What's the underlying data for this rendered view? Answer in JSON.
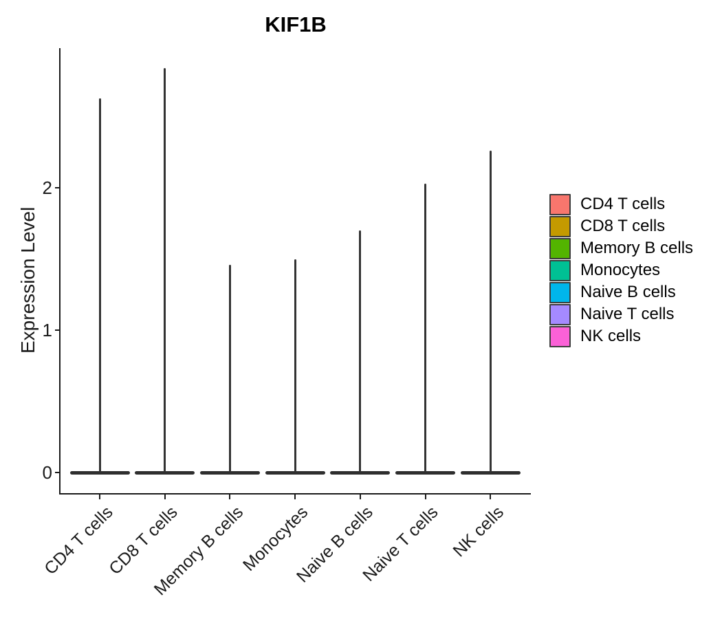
{
  "chart_data": {
    "type": "violin",
    "title": "KIF1B",
    "xlabel": "",
    "ylabel": "Expression Level",
    "categories": [
      "CD4 T cells",
      "CD8 T cells",
      "Memory B cells",
      "Monocytes",
      "Naive B cells",
      "Naive T cells",
      "NK cells"
    ],
    "series": [
      {
        "name": "max_expression_level",
        "values": [
          2.63,
          2.84,
          1.46,
          1.5,
          1.7,
          2.03,
          2.26
        ]
      },
      {
        "name": "density_mode_expression_level",
        "values": [
          0,
          0,
          0,
          0,
          0,
          0,
          0
        ]
      }
    ],
    "colors": [
      "#F8766D",
      "#C49A00",
      "#53B400",
      "#00C094",
      "#00B6EB",
      "#A58AFF",
      "#FB61D7"
    ],
    "y_ticks": [
      0,
      1,
      2
    ],
    "ylim": [
      0,
      2.9
    ],
    "grid": false,
    "legend_position": "right",
    "violin_outline_color": "#333333",
    "note": "Violins are collapsed flat at expression 0 with thin spikes up to each max value"
  },
  "legend": {
    "items": [
      {
        "label": "CD4 T cells",
        "color": "#F8766D"
      },
      {
        "label": "CD8 T cells",
        "color": "#C49A00"
      },
      {
        "label": "Memory B cells",
        "color": "#53B400"
      },
      {
        "label": "Monocytes",
        "color": "#00C094"
      },
      {
        "label": "Naive B cells",
        "color": "#00B6EB"
      },
      {
        "label": "Naive T cells",
        "color": "#A58AFF"
      },
      {
        "label": "NK cells",
        "color": "#FB61D7"
      }
    ]
  }
}
